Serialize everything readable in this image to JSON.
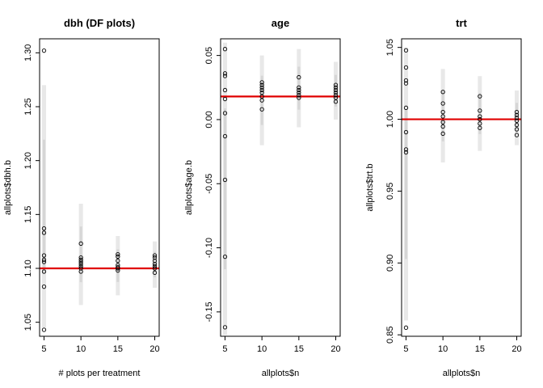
{
  "chart_data": [
    {
      "type": "scatter",
      "title": "dbh (DF plots)",
      "xlabel": "# plots per treatment",
      "ylabel": "allplots$dbh.b",
      "x_ticks": [
        "5",
        "10",
        "15",
        "20"
      ],
      "x_tick_values": [
        5,
        10,
        15,
        20
      ],
      "y_ticks": [
        "1.05",
        "1.10",
        "1.15",
        "1.20",
        "1.25",
        "1.30"
      ],
      "y_tick_values": [
        1.05,
        1.1,
        1.15,
        1.2,
        1.25,
        1.3
      ],
      "xlim": [
        4.4,
        20.6
      ],
      "ylim": [
        1.037,
        1.313
      ],
      "reference_line": 1.1,
      "reference_color": "#e00000",
      "bands": [
        {
          "x": 5,
          "y_min": 1.045,
          "y_max": 1.27
        },
        {
          "x": 10,
          "y_min": 1.066,
          "y_max": 1.16
        },
        {
          "x": 15,
          "y_min": 1.075,
          "y_max": 1.13
        },
        {
          "x": 20,
          "y_min": 1.082,
          "y_max": 1.125
        }
      ],
      "points": [
        {
          "x": 5,
          "y": 1.302
        },
        {
          "x": 5,
          "y": 1.137
        },
        {
          "x": 5,
          "y": 1.133
        },
        {
          "x": 5,
          "y": 1.112
        },
        {
          "x": 5,
          "y": 1.108
        },
        {
          "x": 5,
          "y": 1.106
        },
        {
          "x": 5,
          "y": 1.097
        },
        {
          "x": 5,
          "y": 1.083
        },
        {
          "x": 5,
          "y": 1.043
        },
        {
          "x": 10,
          "y": 1.123
        },
        {
          "x": 10,
          "y": 1.11
        },
        {
          "x": 10,
          "y": 1.108
        },
        {
          "x": 10,
          "y": 1.106
        },
        {
          "x": 10,
          "y": 1.104
        },
        {
          "x": 10,
          "y": 1.102
        },
        {
          "x": 10,
          "y": 1.1
        },
        {
          "x": 10,
          "y": 1.097
        },
        {
          "x": 15,
          "y": 1.113
        },
        {
          "x": 15,
          "y": 1.111
        },
        {
          "x": 15,
          "y": 1.107
        },
        {
          "x": 15,
          "y": 1.103
        },
        {
          "x": 15,
          "y": 1.101
        },
        {
          "x": 15,
          "y": 1.1
        },
        {
          "x": 15,
          "y": 1.098
        },
        {
          "x": 20,
          "y": 1.112
        },
        {
          "x": 20,
          "y": 1.11
        },
        {
          "x": 20,
          "y": 1.107
        },
        {
          "x": 20,
          "y": 1.104
        },
        {
          "x": 20,
          "y": 1.102
        },
        {
          "x": 20,
          "y": 1.1
        },
        {
          "x": 20,
          "y": 1.096
        }
      ]
    },
    {
      "type": "scatter",
      "title": "age",
      "xlabel": "allplots$n",
      "ylabel": "allplots$age.b",
      "x_ticks": [
        "5",
        "10",
        "15",
        "20"
      ],
      "x_tick_values": [
        5,
        10,
        15,
        20
      ],
      "y_ticks": [
        "-0.15",
        "-0.10",
        "-0.05",
        "0.00",
        "0.05"
      ],
      "y_tick_values": [
        -0.15,
        -0.1,
        -0.05,
        0.0,
        0.05
      ],
      "xlim": [
        4.4,
        20.6
      ],
      "ylim": [
        -0.169,
        0.063
      ],
      "reference_line": 0.018,
      "reference_color": "#e00000",
      "bands": [
        {
          "x": 5,
          "y_min": -0.168,
          "y_max": 0.06
        },
        {
          "x": 10,
          "y_min": -0.02,
          "y_max": 0.05
        },
        {
          "x": 15,
          "y_min": -0.006,
          "y_max": 0.055
        },
        {
          "x": 20,
          "y_min": 0.0,
          "y_max": 0.045
        }
      ],
      "points": [
        {
          "x": 5,
          "y": 0.055
        },
        {
          "x": 5,
          "y": 0.036
        },
        {
          "x": 5,
          "y": 0.034
        },
        {
          "x": 5,
          "y": 0.023
        },
        {
          "x": 5,
          "y": 0.016
        },
        {
          "x": 5,
          "y": 0.005
        },
        {
          "x": 5,
          "y": -0.013
        },
        {
          "x": 5,
          "y": -0.047
        },
        {
          "x": 5,
          "y": -0.107
        },
        {
          "x": 5,
          "y": -0.162
        },
        {
          "x": 10,
          "y": 0.029
        },
        {
          "x": 10,
          "y": 0.027
        },
        {
          "x": 10,
          "y": 0.025
        },
        {
          "x": 10,
          "y": 0.023
        },
        {
          "x": 10,
          "y": 0.021
        },
        {
          "x": 10,
          "y": 0.018
        },
        {
          "x": 10,
          "y": 0.015
        },
        {
          "x": 10,
          "y": 0.008
        },
        {
          "x": 15,
          "y": 0.033
        },
        {
          "x": 15,
          "y": 0.025
        },
        {
          "x": 15,
          "y": 0.023
        },
        {
          "x": 15,
          "y": 0.021
        },
        {
          "x": 15,
          "y": 0.019
        },
        {
          "x": 15,
          "y": 0.017
        },
        {
          "x": 20,
          "y": 0.027
        },
        {
          "x": 20,
          "y": 0.025
        },
        {
          "x": 20,
          "y": 0.023
        },
        {
          "x": 20,
          "y": 0.021
        },
        {
          "x": 20,
          "y": 0.019
        },
        {
          "x": 20,
          "y": 0.017
        },
        {
          "x": 20,
          "y": 0.014
        }
      ]
    },
    {
      "type": "scatter",
      "title": "trt",
      "xlabel": "allplots$n",
      "ylabel": "allplots$trt.b",
      "x_ticks": [
        "5",
        "10",
        "15",
        "20"
      ],
      "x_tick_values": [
        5,
        10,
        15,
        20
      ],
      "y_ticks": [
        "0.85",
        "0.90",
        "0.95",
        "1.00",
        "1.05"
      ],
      "y_tick_values": [
        0.85,
        0.9,
        0.95,
        1.0,
        1.05
      ],
      "xlim": [
        4.4,
        20.6
      ],
      "ylim": [
        0.849,
        1.056
      ],
      "reference_line": 1.0,
      "reference_color": "#e00000",
      "bands": [
        {
          "x": 5,
          "y_min": 0.86,
          "y_max": 1.05
        },
        {
          "x": 10,
          "y_min": 0.97,
          "y_max": 1.035
        },
        {
          "x": 15,
          "y_min": 0.978,
          "y_max": 1.03
        },
        {
          "x": 20,
          "y_min": 0.982,
          "y_max": 1.02
        }
      ],
      "points": [
        {
          "x": 5,
          "y": 1.048
        },
        {
          "x": 5,
          "y": 1.036
        },
        {
          "x": 5,
          "y": 1.027
        },
        {
          "x": 5,
          "y": 1.025
        },
        {
          "x": 5,
          "y": 1.008
        },
        {
          "x": 5,
          "y": 0.991
        },
        {
          "x": 5,
          "y": 0.979
        },
        {
          "x": 5,
          "y": 0.977
        },
        {
          "x": 5,
          "y": 0.855
        },
        {
          "x": 10,
          "y": 1.019
        },
        {
          "x": 10,
          "y": 1.011
        },
        {
          "x": 10,
          "y": 1.005
        },
        {
          "x": 10,
          "y": 1.002
        },
        {
          "x": 10,
          "y": 0.998
        },
        {
          "x": 10,
          "y": 0.995
        },
        {
          "x": 10,
          "y": 0.99
        },
        {
          "x": 15,
          "y": 1.016
        },
        {
          "x": 15,
          "y": 1.006
        },
        {
          "x": 15,
          "y": 1.002
        },
        {
          "x": 15,
          "y": 1.0
        },
        {
          "x": 15,
          "y": 0.997
        },
        {
          "x": 15,
          "y": 0.994
        },
        {
          "x": 20,
          "y": 1.005
        },
        {
          "x": 20,
          "y": 1.003
        },
        {
          "x": 20,
          "y": 1.001
        },
        {
          "x": 20,
          "y": 0.999
        },
        {
          "x": 20,
          "y": 0.996
        },
        {
          "x": 20,
          "y": 0.993
        },
        {
          "x": 20,
          "y": 0.989
        }
      ]
    }
  ]
}
